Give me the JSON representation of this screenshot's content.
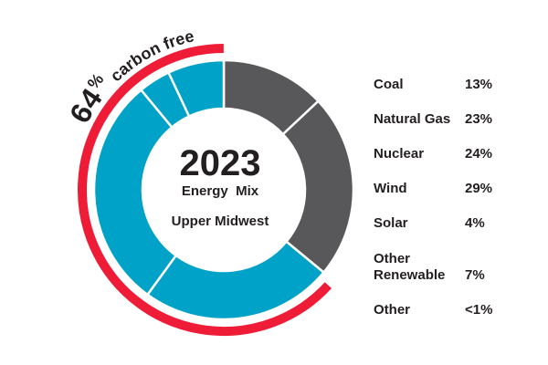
{
  "chart_data": {
    "type": "pie",
    "variant": "donut",
    "title": "2023",
    "subtitle": "Energy Mix",
    "region": "Upper Midwest",
    "annotation": {
      "percent": "64",
      "percent_sign": "%",
      "text": "carbon free"
    },
    "categories": [
      "Coal",
      "Natural Gas",
      "Nuclear",
      "Wind",
      "Solar",
      "Other Renewable",
      "Other"
    ],
    "values": [
      13,
      23,
      24,
      29,
      4,
      7,
      0.5
    ],
    "value_labels": [
      "13%",
      "23%",
      "24%",
      "29%",
      "4%",
      "7%",
      "<1%"
    ],
    "colors": [
      "#58585a",
      "#58585a",
      "#00a3c7",
      "#00a3c7",
      "#00a3c7",
      "#00a3c7",
      "#00a3c7"
    ],
    "carbon_free_share": 64,
    "legend_position": "right"
  },
  "center": {
    "year": "2023",
    "subtitle": "Energy  Mix",
    "region": "Upper Midwest"
  },
  "arc_label": {
    "number": "64",
    "percent_sign": "%",
    "text": "carbon free"
  },
  "colors": {
    "fossil": "#58585a",
    "carbon_free": "#00a3c7",
    "highlight_arc": "#ee1c36",
    "text": "#231f20"
  },
  "legend": [
    {
      "label": "Coal",
      "value": "13%"
    },
    {
      "label": "Natural Gas",
      "value": "23%"
    },
    {
      "label": "Nuclear",
      "value": "24%"
    },
    {
      "label": "Wind",
      "value": "29%"
    },
    {
      "label": "Solar",
      "value": "4%"
    },
    {
      "label_line1": "Other",
      "label_line2": "Renewable",
      "value": "7%"
    },
    {
      "label": "Other",
      "value": "<1%"
    }
  ]
}
